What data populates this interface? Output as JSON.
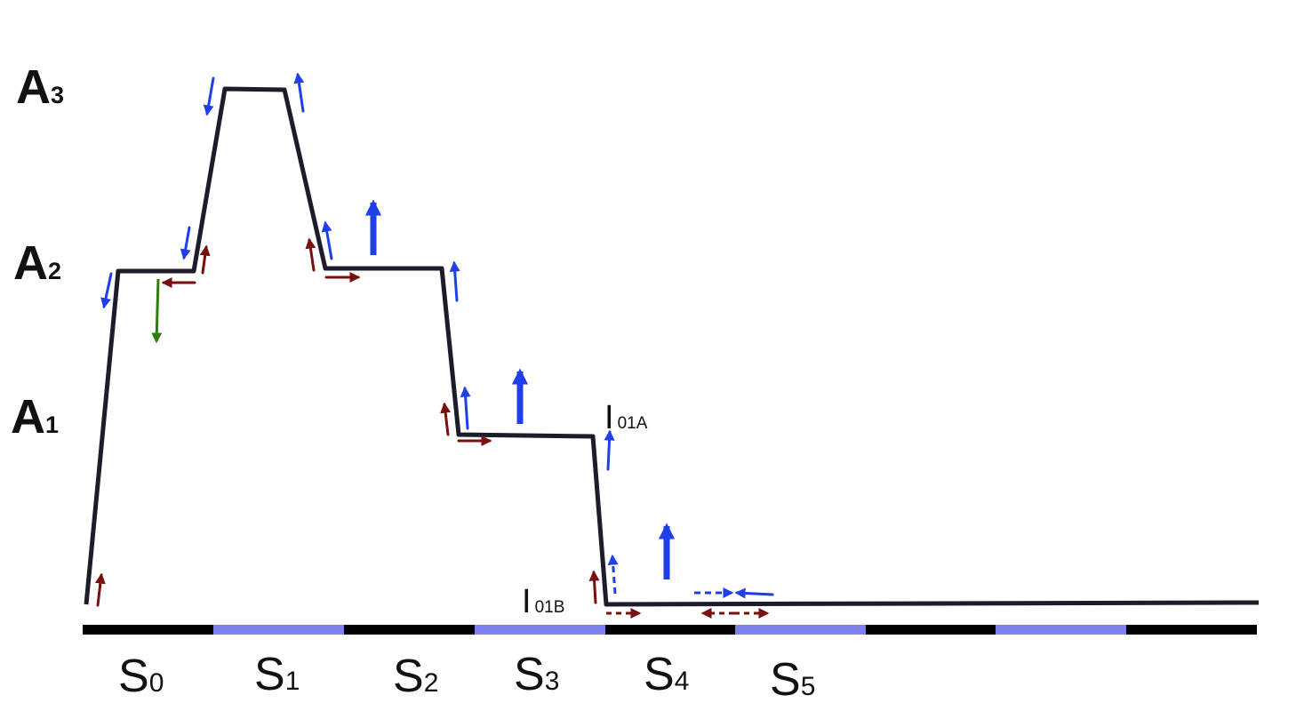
{
  "levels": [
    {
      "main": "A",
      "sub": "3"
    },
    {
      "main": "A",
      "sub": "2"
    },
    {
      "main": "A",
      "sub": "1"
    }
  ],
  "segments": [
    {
      "main": "S",
      "sub": "0"
    },
    {
      "main": "S",
      "sub": "1"
    },
    {
      "main": "S",
      "sub": "2"
    },
    {
      "main": "S",
      "sub": "3"
    },
    {
      "main": "S",
      "sub": "4"
    },
    {
      "main": "S",
      "sub": "5"
    }
  ],
  "intermediates": [
    {
      "main": "I",
      "sub": "01A"
    },
    {
      "main": "I",
      "sub": "01B"
    }
  ],
  "colors": {
    "profile": "#1c1c2a",
    "bar_dark": "#000000",
    "bar_light": "#8080f0",
    "blue_arrow": "#1f3fe8",
    "red_arrow": "#7a0f0f",
    "green_arrow": "#2f7d10"
  }
}
